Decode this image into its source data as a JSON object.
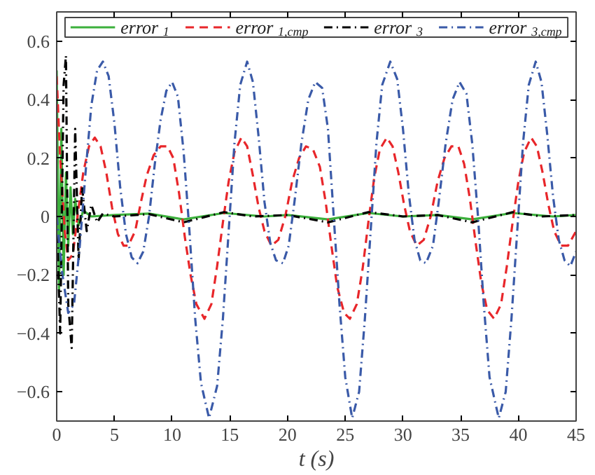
{
  "chart_data": {
    "type": "line",
    "xlabel": "t (s)",
    "xlim": [
      0,
      45
    ],
    "ylim": [
      -0.7,
      0.7
    ],
    "xticks": [
      0,
      5,
      10,
      15,
      20,
      25,
      30,
      35,
      40,
      45
    ],
    "yticks": [
      {
        "value": -0.6,
        "label": "−0.6"
      },
      {
        "value": -0.4,
        "label": "−0.4"
      },
      {
        "value": -0.2,
        "label": "−0.2"
      },
      0,
      0.2,
      0.4,
      0.6
    ],
    "grid": false,
    "legend": "top",
    "marker": "none",
    "series": [
      {
        "name": "error$_{1}$",
        "color": "#3cb03c",
        "line_style": "solid",
        "x": [
          0,
          0.2,
          0.4,
          0.6,
          0.8,
          1.0,
          1.2,
          1.4,
          1.6,
          1.9,
          2.3,
          3,
          5,
          8,
          11,
          14.5,
          18,
          20,
          23.5,
          27,
          30,
          33,
          36,
          39.5,
          43,
          45
        ],
        "values": [
          0.5,
          -0.25,
          0.3,
          -0.2,
          0.15,
          -0.1,
          0.1,
          -0.06,
          0.06,
          -0.03,
          0.02,
          0.0,
          0.005,
          0.01,
          -0.01,
          0.012,
          0.0,
          0.005,
          -0.01,
          0.012,
          0.0,
          0.005,
          -0.01,
          0.012,
          0.0,
          0.005
        ]
      },
      {
        "name": "error$_{1,cmp}$",
        "color": "#e8262a",
        "line_style": "dashed",
        "x": [
          0,
          0.3,
          0.7,
          1.0,
          1.4,
          1.8,
          2.3,
          2.8,
          3.3,
          3.8,
          4.3,
          4.8,
          5.3,
          5.8,
          6.2,
          6.8,
          7.3,
          7.8,
          8.4,
          9.0,
          9.6,
          10.1,
          10.6,
          11.1,
          11.6,
          12.1,
          12.8,
          13.4,
          13.9,
          14.4,
          14.9,
          15.4,
          16.0,
          16.5,
          17.0,
          17.5,
          18.0,
          18.6,
          19.2,
          19.8,
          20.4,
          21.0,
          21.6,
          22.2,
          22.8,
          23.3,
          23.8,
          24.3,
          24.9,
          25.4,
          26.0,
          26.5,
          27.0,
          27.5,
          28.0,
          28.6,
          29.1,
          29.6,
          30.1,
          30.6,
          31.2,
          31.8,
          32.4,
          33.0,
          33.6,
          34.2,
          34.8,
          35.3,
          35.8,
          36.3,
          36.8,
          37.3,
          37.9,
          38.5,
          39.0,
          39.5,
          40.0,
          40.5,
          41.1,
          41.6,
          42.1,
          42.6,
          43.1,
          43.7,
          44.3,
          45
        ],
        "values": [
          0.48,
          0.2,
          -0.05,
          -0.15,
          -0.13,
          0.0,
          0.15,
          0.24,
          0.27,
          0.24,
          0.15,
          0.03,
          -0.06,
          -0.1,
          -0.1,
          -0.05,
          0.05,
          0.14,
          0.21,
          0.24,
          0.24,
          0.2,
          0.08,
          -0.07,
          -0.2,
          -0.3,
          -0.35,
          -0.3,
          -0.17,
          -0.02,
          0.12,
          0.22,
          0.27,
          0.24,
          0.14,
          0.03,
          -0.05,
          -0.1,
          -0.08,
          0.0,
          0.12,
          0.2,
          0.24,
          0.23,
          0.17,
          0.05,
          -0.1,
          -0.24,
          -0.33,
          -0.35,
          -0.3,
          -0.18,
          -0.02,
          0.13,
          0.23,
          0.27,
          0.24,
          0.15,
          0.04,
          -0.05,
          -0.1,
          -0.08,
          0.0,
          0.12,
          0.2,
          0.24,
          0.24,
          0.18,
          0.06,
          -0.09,
          -0.23,
          -0.32,
          -0.35,
          -0.3,
          -0.17,
          -0.02,
          0.12,
          0.22,
          0.27,
          0.24,
          0.15,
          0.04,
          -0.05,
          -0.1,
          -0.1,
          -0.05
        ]
      },
      {
        "name": "error$_{3}$",
        "color": "#000000",
        "line_style": "dashdot",
        "x": [
          0,
          0.3,
          0.6,
          0.8,
          1.0,
          1.3,
          1.6,
          1.9,
          2.2,
          2.6,
          3.0,
          3.5,
          4.0,
          5,
          8,
          11,
          14.5,
          17,
          20,
          23.5,
          27,
          30,
          33,
          36,
          39.5,
          42,
          45
        ],
        "values": [
          0.0,
          -0.4,
          0.45,
          0.55,
          -0.3,
          -0.45,
          0.3,
          -0.15,
          0.1,
          -0.05,
          0.04,
          -0.02,
          0.01,
          0.0,
          0.008,
          -0.02,
          0.015,
          0.0,
          0.005,
          -0.02,
          0.015,
          0.0,
          0.005,
          -0.02,
          0.015,
          0.0,
          0.005
        ]
      },
      {
        "name": "error$_{3,cmp}$",
        "color": "#3a5aa8",
        "line_style": "dashdot",
        "x": [
          0,
          0.5,
          1.0,
          1.5,
          2.0,
          2.5,
          3.0,
          3.5,
          4.0,
          4.5,
          5.0,
          5.5,
          6.0,
          6.5,
          7.0,
          7.5,
          8.0,
          8.5,
          9.0,
          9.5,
          10.0,
          10.5,
          11.0,
          11.5,
          12.0,
          12.5,
          13.2,
          13.9,
          14.4,
          14.9,
          15.4,
          15.9,
          16.5,
          17.0,
          17.5,
          18.0,
          18.5,
          19.0,
          19.6,
          20.1,
          20.6,
          21.2,
          21.8,
          22.4,
          23.0,
          23.5,
          24.0,
          24.5,
          25.0,
          25.6,
          26.2,
          26.7,
          27.2,
          27.7,
          28.2,
          28.9,
          29.5,
          30.0,
          30.5,
          31.0,
          31.5,
          32.0,
          32.6,
          33.1,
          33.7,
          34.3,
          34.9,
          35.5,
          36.0,
          36.5,
          37.0,
          37.5,
          38.3,
          38.9,
          39.4,
          39.9,
          40.4,
          40.9,
          41.5,
          42.0,
          42.5,
          43.0,
          43.5,
          44.0,
          44.5,
          45
        ],
        "values": [
          0.0,
          -0.2,
          -0.33,
          -0.3,
          -0.1,
          0.15,
          0.38,
          0.5,
          0.53,
          0.48,
          0.32,
          0.1,
          -0.06,
          -0.14,
          -0.16,
          -0.12,
          0.0,
          0.18,
          0.33,
          0.43,
          0.46,
          0.41,
          0.22,
          -0.05,
          -0.35,
          -0.57,
          -0.69,
          -0.58,
          -0.35,
          -0.05,
          0.25,
          0.45,
          0.53,
          0.46,
          0.27,
          0.05,
          -0.09,
          -0.15,
          -0.16,
          -0.1,
          0.05,
          0.25,
          0.4,
          0.46,
          0.44,
          0.3,
          0.0,
          -0.3,
          -0.55,
          -0.69,
          -0.6,
          -0.35,
          -0.05,
          0.25,
          0.45,
          0.53,
          0.47,
          0.3,
          0.08,
          -0.08,
          -0.15,
          -0.16,
          -0.1,
          0.05,
          0.25,
          0.4,
          0.46,
          0.42,
          0.25,
          0.0,
          -0.3,
          -0.55,
          -0.69,
          -0.6,
          -0.35,
          -0.05,
          0.25,
          0.45,
          0.53,
          0.46,
          0.28,
          0.07,
          -0.08,
          -0.15,
          -0.17,
          -0.12
        ]
      }
    ]
  }
}
